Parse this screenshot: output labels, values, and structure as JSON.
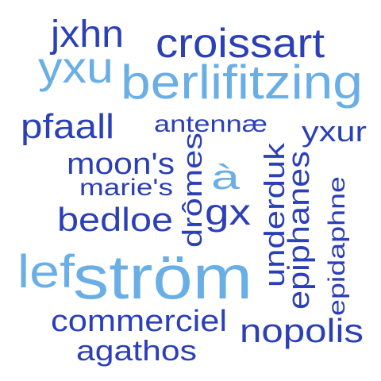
{
  "palette": {
    "dark": "#2b3fb8",
    "light": "#6aaee6"
  },
  "words": [
    {
      "id": "jxhn",
      "text": "jxhn",
      "tone": "dark"
    },
    {
      "id": "croissart",
      "text": "croissart",
      "tone": "dark"
    },
    {
      "id": "yxu",
      "text": "yxu",
      "tone": "light"
    },
    {
      "id": "berlifitzing",
      "text": "berlifitzing",
      "tone": "light"
    },
    {
      "id": "pfaall",
      "text": "pfaall",
      "tone": "dark"
    },
    {
      "id": "antennae",
      "text": "antennæ",
      "tone": "dark"
    },
    {
      "id": "yxur",
      "text": "yxur",
      "tone": "dark"
    },
    {
      "id": "moons",
      "text": "moon's",
      "tone": "dark"
    },
    {
      "id": "dromes",
      "text": "drômes",
      "tone": "dark"
    },
    {
      "id": "a-grave",
      "text": "à",
      "tone": "light"
    },
    {
      "id": "underduk",
      "text": "underduk",
      "tone": "dark"
    },
    {
      "id": "epiphanes",
      "text": "epiphanes",
      "tone": "dark"
    },
    {
      "id": "epidaphne",
      "text": "epidaphne",
      "tone": "dark"
    },
    {
      "id": "maries",
      "text": "marie's",
      "tone": "dark"
    },
    {
      "id": "bedloe",
      "text": "bedloe",
      "tone": "dark"
    },
    {
      "id": "gx",
      "text": "gx",
      "tone": "dark"
    },
    {
      "id": "lef",
      "text": "lef",
      "tone": "light"
    },
    {
      "id": "strom",
      "text": "ström",
      "tone": "light"
    },
    {
      "id": "commerciel",
      "text": "commerciel",
      "tone": "dark"
    },
    {
      "id": "nopolis",
      "text": "nopolis",
      "tone": "dark"
    },
    {
      "id": "agathos",
      "text": "agathos",
      "tone": "dark"
    }
  ]
}
